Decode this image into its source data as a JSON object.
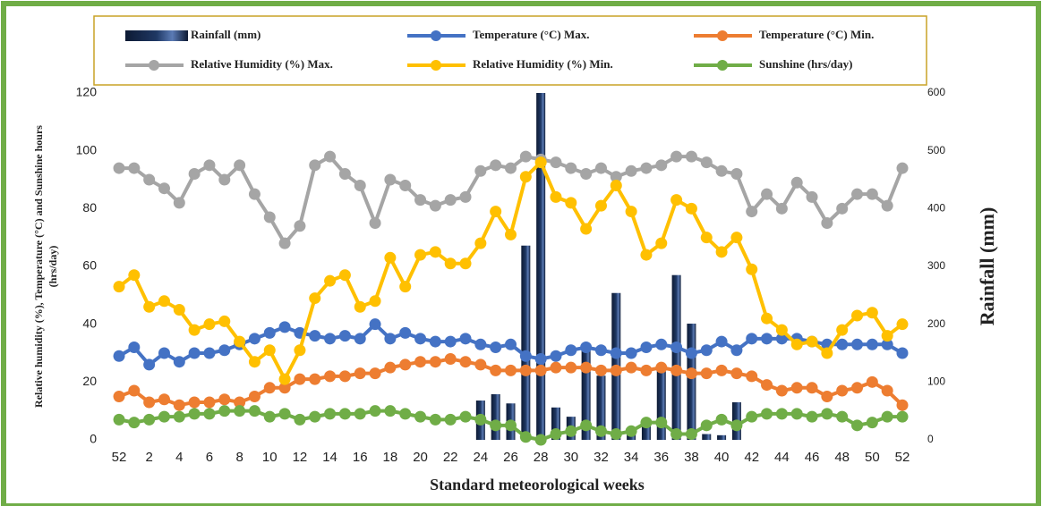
{
  "chart_data": {
    "type": "combo",
    "xlabel": "Standard meteorological weeks",
    "ylabel_lines": [
      "Relative humidity (%), Temperature (°C) and Sunshine hours",
      "(hrs/day)"
    ],
    "y2label": "Rainfall (mm)",
    "categories": [
      "52",
      null,
      "2",
      null,
      "4",
      null,
      "6",
      null,
      "8",
      null,
      "10",
      null,
      "12",
      null,
      "14",
      null,
      "16",
      null,
      "18",
      null,
      "20",
      null,
      "22",
      null,
      "24",
      null,
      "26",
      null,
      "28",
      null,
      "30",
      null,
      "32",
      null,
      "34",
      null,
      "36",
      null,
      "38",
      null,
      "40",
      null,
      "42",
      null,
      "44",
      null,
      "46",
      null,
      "48",
      null,
      "50",
      null,
      "52"
    ],
    "ylim": [
      0,
      120
    ],
    "yticks": [
      0,
      20,
      40,
      60,
      80,
      100,
      120
    ],
    "y2lim": [
      0,
      600
    ],
    "y2ticks": [
      0,
      100,
      200,
      300,
      400,
      500,
      600
    ],
    "grid": false,
    "series": [
      {
        "name": "Rainfall (mm)",
        "type": "bar",
        "axis": "y2",
        "color": "#1f3864",
        "values": [
          null,
          null,
          null,
          null,
          null,
          null,
          null,
          null,
          null,
          null,
          null,
          null,
          null,
          null,
          null,
          null,
          null,
          null,
          null,
          null,
          null,
          null,
          null,
          null,
          68,
          79,
          63,
          336,
          600,
          56,
          40,
          165,
          111,
          254,
          10,
          34,
          119,
          285,
          201,
          10,
          8,
          65,
          null,
          null,
          null,
          null,
          null,
          null,
          null,
          null,
          null,
          null,
          null
        ]
      },
      {
        "name": "Temperature (°C) Max.",
        "type": "line",
        "color": "#4472c4",
        "values": [
          29,
          32,
          26,
          30,
          27,
          30,
          30,
          31,
          33,
          35,
          37,
          39,
          37,
          36,
          35,
          36,
          35,
          40,
          35,
          37,
          35,
          34,
          34,
          35,
          33,
          32,
          33,
          29,
          28,
          29,
          31,
          32,
          31,
          30,
          30,
          32,
          33,
          32,
          30,
          31,
          34,
          31,
          35,
          35,
          35,
          35,
          34,
          33,
          33,
          33,
          33,
          33,
          30
        ]
      },
      {
        "name": "Temperature (°C) Min.",
        "type": "line",
        "color": "#ed7d31",
        "values": [
          15,
          17,
          13,
          14,
          12,
          13,
          13,
          14,
          13,
          15,
          18,
          18,
          21,
          21,
          22,
          22,
          23,
          23,
          25,
          26,
          27,
          27,
          28,
          27,
          26,
          24,
          24,
          24,
          24,
          25,
          25,
          25,
          24,
          24,
          25,
          24,
          25,
          24,
          23,
          23,
          24,
          23,
          22,
          19,
          17,
          18,
          18,
          15,
          17,
          18,
          20,
          17,
          12
        ]
      },
      {
        "name": "Relative Humidity (%) Max.",
        "type": "line",
        "color": "#a5a5a5",
        "values": [
          94,
          94,
          90,
          87,
          82,
          92,
          95,
          90,
          95,
          85,
          77,
          68,
          74,
          95,
          98,
          92,
          88,
          75,
          90,
          88,
          83,
          81,
          83,
          84,
          93,
          95,
          94,
          98,
          97,
          96,
          94,
          92,
          94,
          91,
          93,
          94,
          95,
          98,
          98,
          96,
          93,
          92,
          79,
          85,
          80,
          89,
          84,
          75,
          80,
          85,
          85,
          81,
          94
        ]
      },
      {
        "name": "Relative Humidity (%) Min.",
        "type": "line",
        "color": "#ffc000",
        "values": [
          53,
          57,
          46,
          48,
          45,
          38,
          40,
          41,
          34,
          27,
          31,
          21,
          31,
          49,
          55,
          57,
          46,
          48,
          63,
          53,
          64,
          65,
          61,
          61,
          68,
          79,
          71,
          91,
          96,
          84,
          82,
          73,
          81,
          88,
          79,
          64,
          68,
          83,
          80,
          70,
          65,
          70,
          59,
          42,
          38,
          33,
          34,
          30,
          38,
          43,
          44,
          36,
          40
        ]
      },
      {
        "name": "Sunshine (hrs/day)",
        "type": "line",
        "color": "#70ad47",
        "values": [
          7,
          6,
          7,
          8,
          8,
          9,
          9,
          10,
          10,
          10,
          8,
          9,
          7,
          8,
          9,
          9,
          9,
          10,
          10,
          9,
          8,
          7,
          7,
          8,
          7,
          5,
          5,
          1,
          0,
          2,
          3,
          5,
          3,
          2,
          3,
          6,
          6,
          2,
          2,
          5,
          7,
          5,
          8,
          9,
          9,
          9,
          8,
          9,
          8,
          5,
          6,
          8,
          8
        ]
      }
    ]
  }
}
